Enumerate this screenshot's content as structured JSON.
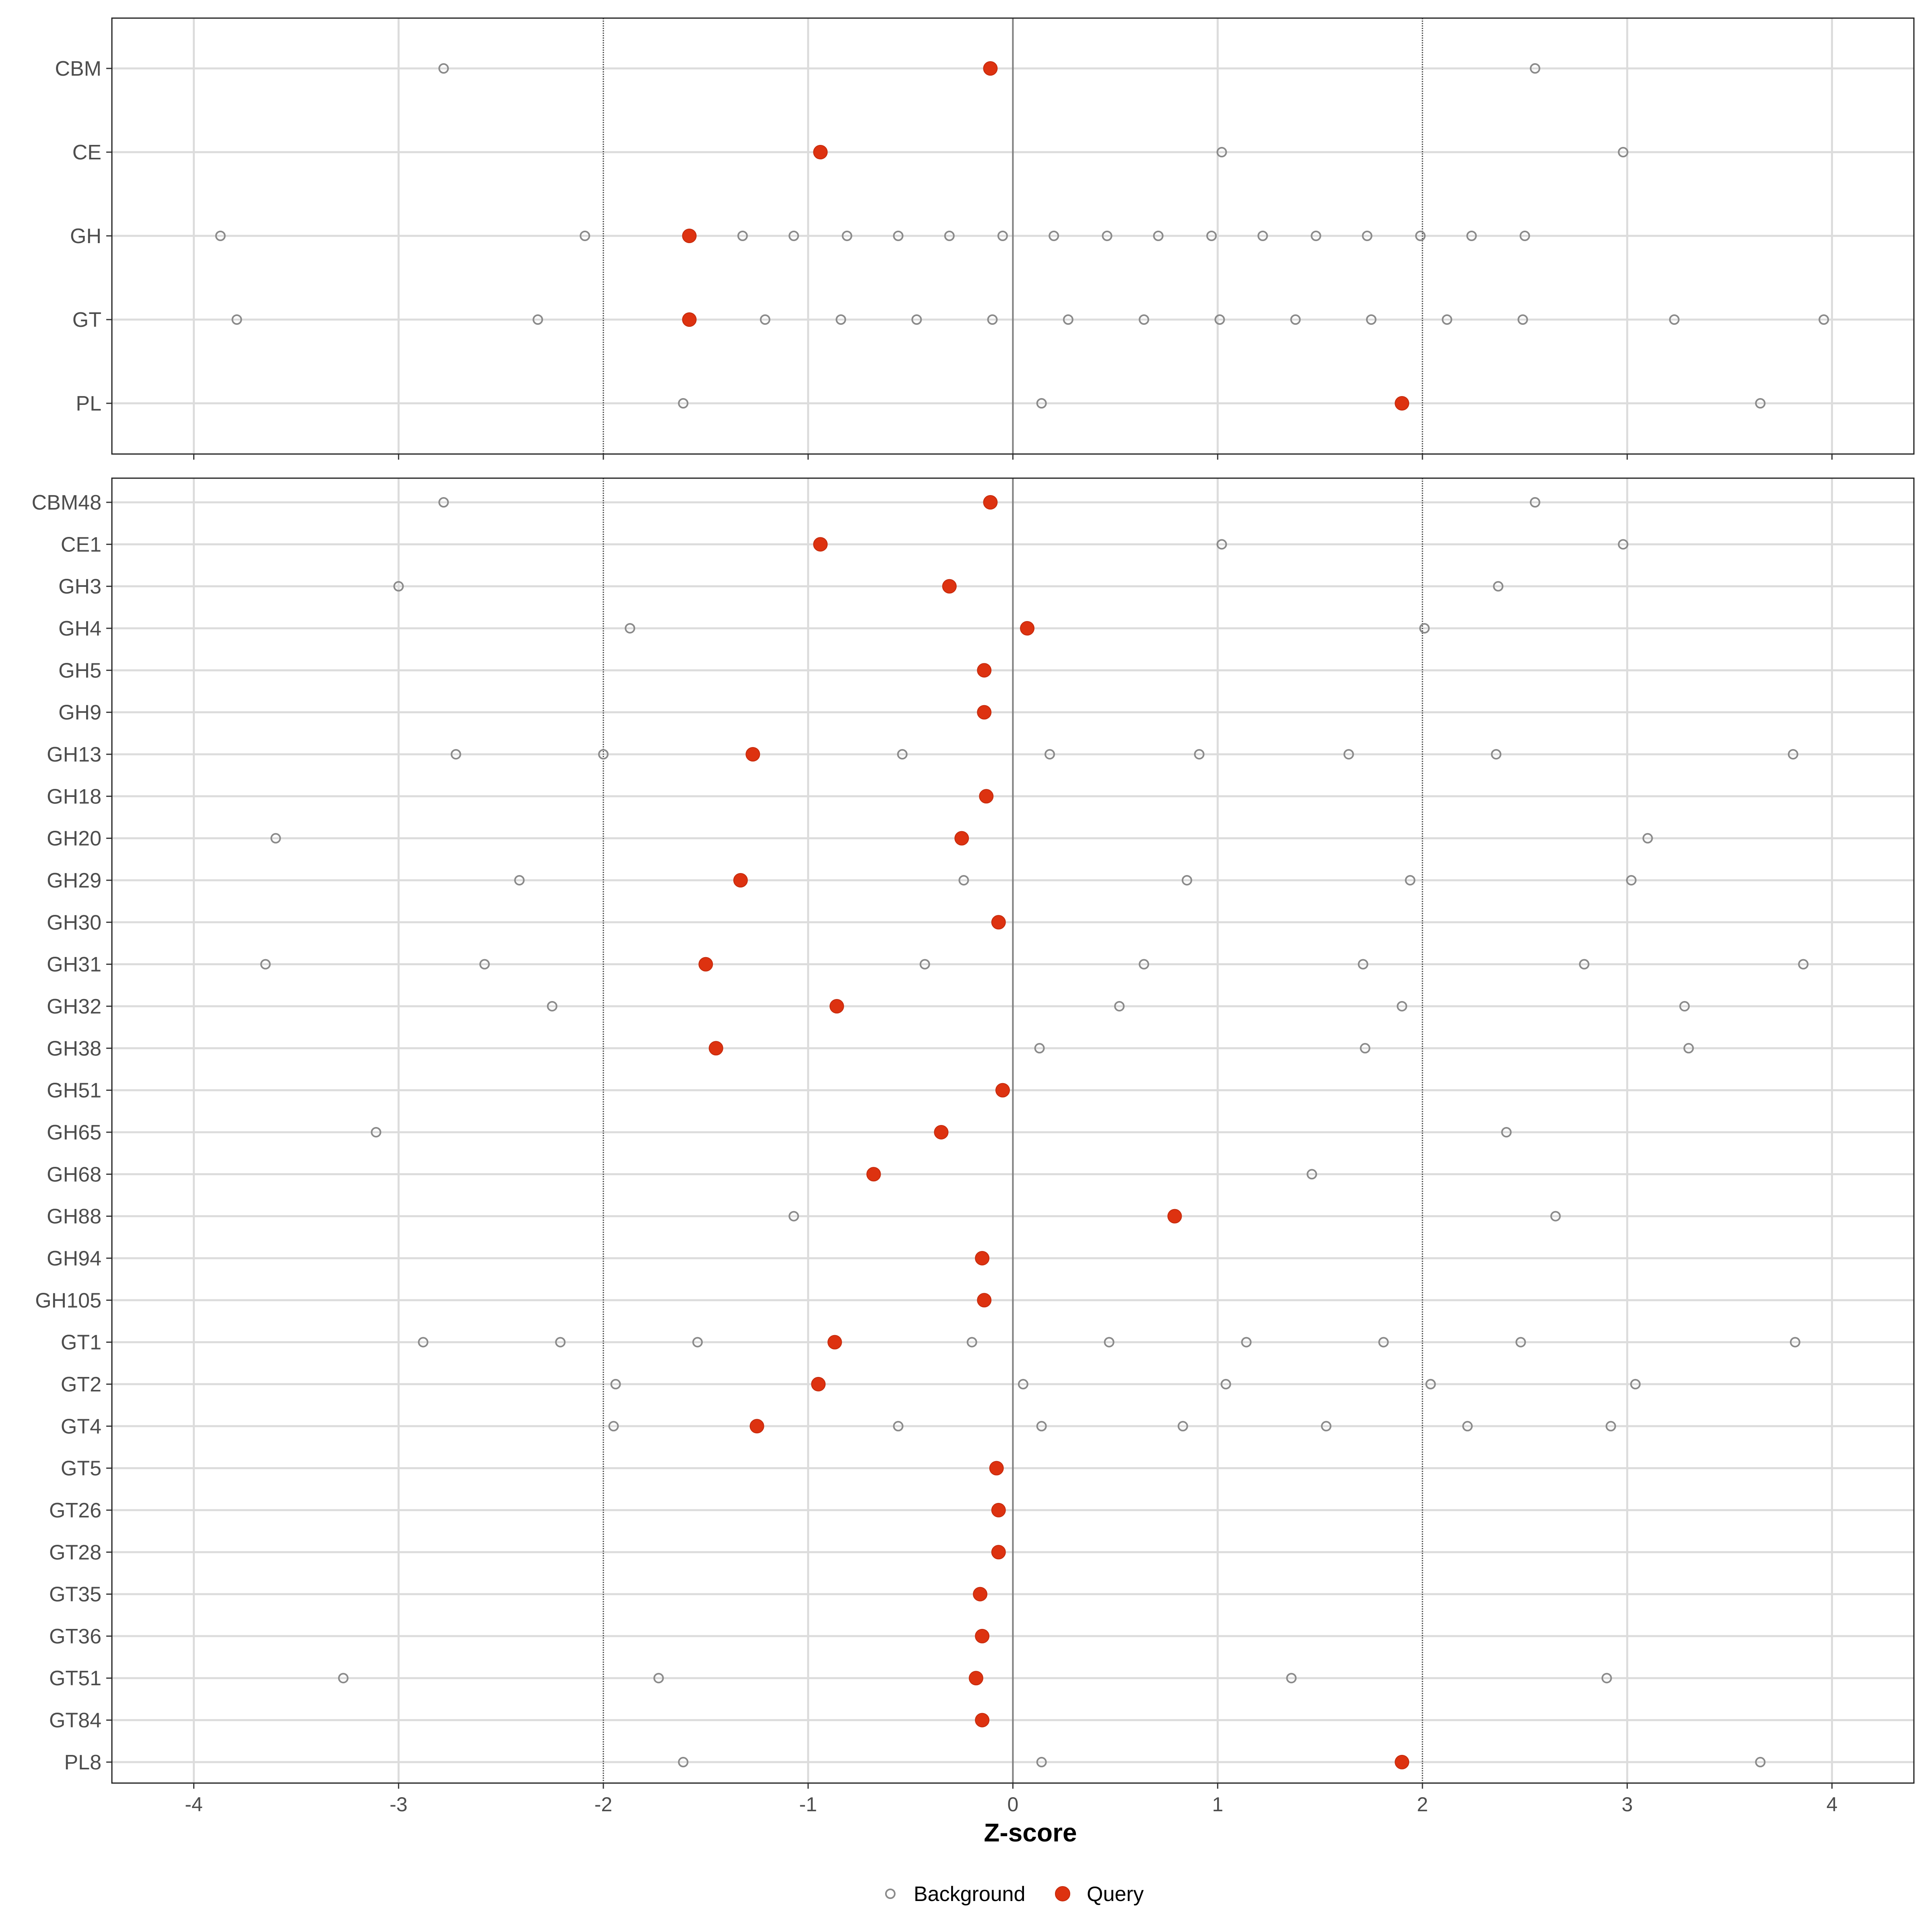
{
  "chart_data": [
    {
      "type": "scatter",
      "panel": "family",
      "categories": [
        "CBM",
        "CE",
        "GH",
        "GT",
        "PL"
      ],
      "xlim": [
        -4.4,
        4.4
      ],
      "x_ticks": [
        "-4",
        "-3",
        "-2",
        "-1",
        "0",
        "1",
        "2",
        "3",
        "4"
      ],
      "thresholds": [
        -2,
        2
      ],
      "series": [
        {
          "name": "Background",
          "points": {
            "CBM": [
              -2.78,
              2.55
            ],
            "CE": [
              1.02,
              2.98
            ],
            "GH": [
              -3.87,
              -2.09,
              -1.32,
              -1.07,
              -0.81,
              -0.56,
              -0.31,
              -0.05,
              0.2,
              0.46,
              0.71,
              0.97,
              1.22,
              1.48,
              1.73,
              1.99,
              2.24,
              2.5
            ],
            "GT": [
              -3.79,
              -2.32,
              -1.21,
              -0.84,
              -0.47,
              -0.1,
              0.27,
              0.64,
              1.01,
              1.38,
              1.75,
              2.12,
              2.49,
              3.23,
              3.96
            ],
            "PL": [
              -1.61,
              0.14,
              3.65
            ]
          }
        },
        {
          "name": "Query",
          "points": {
            "CBM": [
              -0.11
            ],
            "CE": [
              -0.94
            ],
            "GH": [
              -1.58
            ],
            "GT": [
              -1.58
            ],
            "PL": [
              1.9
            ]
          }
        }
      ]
    },
    {
      "type": "scatter",
      "panel": "subfamily",
      "categories": [
        "CBM48",
        "CE1",
        "GH3",
        "GH4",
        "GH5",
        "GH9",
        "GH13",
        "GH18",
        "GH20",
        "GH29",
        "GH30",
        "GH31",
        "GH32",
        "GH38",
        "GH51",
        "GH65",
        "GH68",
        "GH88",
        "GH94",
        "GH105",
        "GT1",
        "GT2",
        "GT4",
        "GT5",
        "GT26",
        "GT28",
        "GT35",
        "GT36",
        "GT51",
        "GT84",
        "PL8"
      ],
      "xlim": [
        -4.4,
        4.4
      ],
      "x_ticks": [
        "-4",
        "-3",
        "-2",
        "-1",
        "0",
        "1",
        "2",
        "3",
        "4"
      ],
      "xlabel": "Z-score",
      "thresholds": [
        -2,
        2
      ],
      "series": [
        {
          "name": "Background",
          "points": {
            "CBM48": [
              -2.78,
              2.55
            ],
            "CE1": [
              1.02,
              2.98
            ],
            "GH3": [
              -3.0,
              2.37
            ],
            "GH4": [
              -1.87,
              2.01
            ],
            "GH13": [
              -2.72,
              -2.0,
              -0.54,
              0.18,
              0.91,
              1.64,
              2.36,
              3.81
            ],
            "GH20": [
              -3.6,
              3.1
            ],
            "GH29": [
              -2.41,
              -0.24,
              0.85,
              1.94,
              3.02
            ],
            "GH31": [
              -3.65,
              -2.58,
              -0.43,
              0.64,
              1.71,
              2.79,
              3.86
            ],
            "GH32": [
              -2.25,
              0.52,
              1.9,
              3.28
            ],
            "GH38": [
              0.13,
              1.72,
              3.3
            ],
            "GH65": [
              -3.11,
              2.41
            ],
            "GH68": [
              1.46
            ],
            "GH88": [
              -1.07,
              2.65
            ],
            "GT1": [
              -2.88,
              -2.21,
              -1.54,
              -0.2,
              0.47,
              1.14,
              1.81,
              2.48,
              3.82
            ],
            "GT2": [
              -1.94,
              0.05,
              1.04,
              2.04,
              3.04
            ],
            "GT4": [
              -1.95,
              -0.56,
              0.14,
              0.83,
              1.53,
              2.22,
              2.92
            ],
            "GT51": [
              -3.27,
              -1.73,
              1.36,
              2.9
            ],
            "PL8": [
              -1.61,
              0.14,
              3.65
            ]
          }
        },
        {
          "name": "Query",
          "points": {
            "CBM48": [
              -0.11
            ],
            "CE1": [
              -0.94
            ],
            "GH3": [
              -0.31
            ],
            "GH4": [
              0.07
            ],
            "GH5": [
              -0.14
            ],
            "GH9": [
              -0.14
            ],
            "GH13": [
              -1.27
            ],
            "GH18": [
              -0.13
            ],
            "GH20": [
              -0.25
            ],
            "GH29": [
              -1.33
            ],
            "GH30": [
              -0.07
            ],
            "GH31": [
              -1.5
            ],
            "GH32": [
              -0.86
            ],
            "GH38": [
              -1.45
            ],
            "GH51": [
              -0.05
            ],
            "GH65": [
              -0.35
            ],
            "GH68": [
              -0.68
            ],
            "GH88": [
              0.79
            ],
            "GH94": [
              -0.15
            ],
            "GH105": [
              -0.14
            ],
            "GT1": [
              -0.87
            ],
            "GT2": [
              -0.95
            ],
            "GT4": [
              -1.25
            ],
            "GT5": [
              -0.08
            ],
            "GT26": [
              -0.07
            ],
            "GT28": [
              -0.07
            ],
            "GT35": [
              -0.16
            ],
            "GT36": [
              -0.15
            ],
            "GT51": [
              -0.18
            ],
            "GT84": [
              -0.15
            ],
            "PL8": [
              1.9
            ]
          }
        }
      ]
    }
  ],
  "legend": {
    "background_label": "Background",
    "query_label": "Query"
  },
  "colors": {
    "query": "#dd3210",
    "background": "#8a8a8a"
  }
}
